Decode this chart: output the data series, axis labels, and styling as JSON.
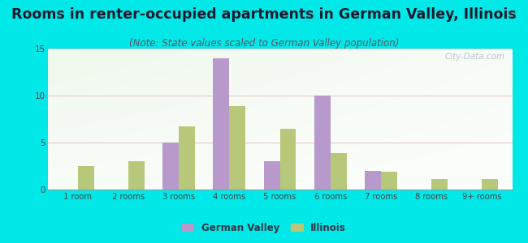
{
  "title": "Rooms in renter-occupied apartments in German Valley, Illinois",
  "subtitle": "(Note: State values scaled to German Valley population)",
  "categories": [
    "1 room",
    "2 rooms",
    "3 rooms",
    "4 rooms",
    "5 rooms",
    "6 rooms",
    "7 rooms",
    "8 rooms",
    "9+ rooms"
  ],
  "german_valley": [
    0,
    0,
    5,
    14,
    3,
    10,
    2,
    0,
    0
  ],
  "illinois": [
    2.5,
    3.0,
    6.7,
    8.9,
    6.5,
    3.9,
    1.9,
    1.1,
    1.1
  ],
  "bar_color_gv": "#b799cc",
  "bar_color_il": "#b8c87a",
  "background_outer": "#00e8e8",
  "ylim": [
    0,
    15
  ],
  "yticks": [
    0,
    5,
    10,
    15
  ],
  "title_fontsize": 12.5,
  "subtitle_fontsize": 8.5,
  "watermark": "City-Data.com",
  "legend_gv": "German Valley",
  "legend_il": "Illinois"
}
